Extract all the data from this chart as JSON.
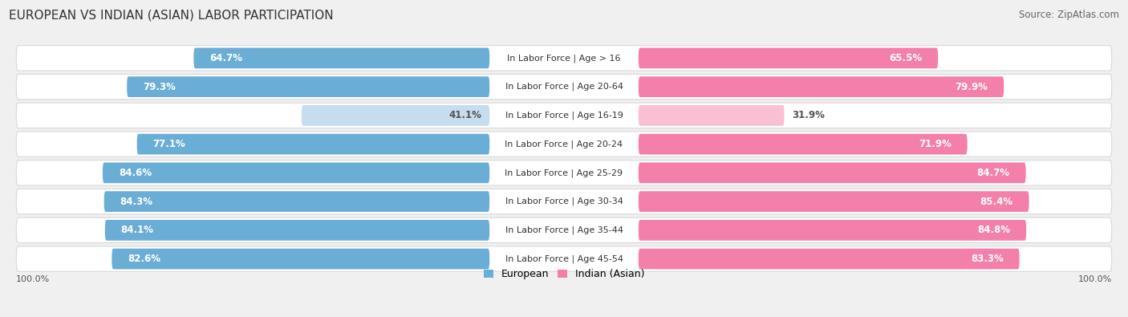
{
  "title": "European vs Indian (Asian) Labor Participation",
  "source": "Source: ZipAtlas.com",
  "categories": [
    "In Labor Force | Age > 16",
    "In Labor Force | Age 20-64",
    "In Labor Force | Age 16-19",
    "In Labor Force | Age 20-24",
    "In Labor Force | Age 25-29",
    "In Labor Force | Age 30-34",
    "In Labor Force | Age 35-44",
    "In Labor Force | Age 45-54"
  ],
  "european_values": [
    64.7,
    79.3,
    41.1,
    77.1,
    84.6,
    84.3,
    84.1,
    82.6
  ],
  "indian_values": [
    65.5,
    79.9,
    31.9,
    71.9,
    84.7,
    85.4,
    84.8,
    83.3
  ],
  "european_color": "#6aaed6",
  "european_color_light": "#c6dcef",
  "indian_color": "#f47faa",
  "indian_color_light": "#f9c0d4",
  "label_color_dark": "#555555",
  "bg_color": "#f0f0f0",
  "row_bg": "#ffffff",
  "max_value": 100.0,
  "title_fontsize": 11,
  "source_fontsize": 8.5,
  "bar_label_fontsize": 8.5,
  "category_fontsize": 8
}
